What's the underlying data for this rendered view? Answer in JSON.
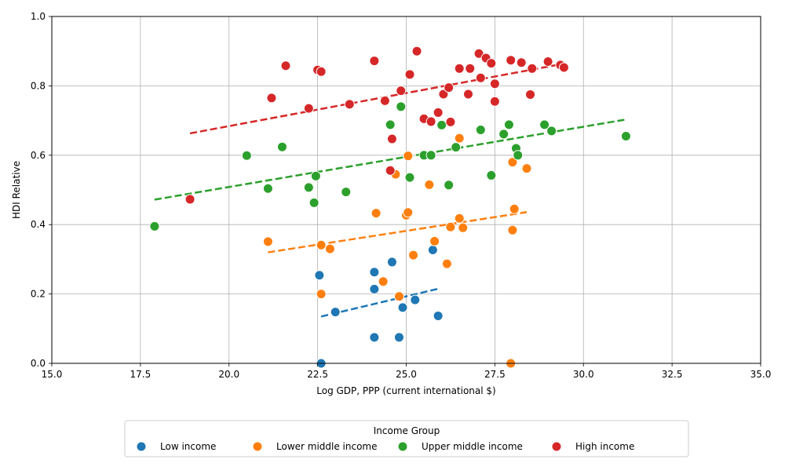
{
  "chart_data": {
    "type": "scatter",
    "title": "",
    "xlabel": "Log GDP, PPP (current international $)",
    "ylabel": "HDI Relative",
    "xlim": [
      15,
      35
    ],
    "ylim": [
      0,
      1
    ],
    "x_ticks": [
      "15.0",
      "17.5",
      "20.0",
      "22.5",
      "25.0",
      "27.5",
      "30.0",
      "32.5",
      "35.0"
    ],
    "y_ticks": [
      "0.0",
      "0.2",
      "0.4",
      "0.6",
      "0.8",
      "1.0"
    ],
    "grid": true,
    "legend": {
      "title": "Income Group",
      "placement": "bottom-center"
    },
    "series": [
      {
        "name": "Low income",
        "color": "#1f77b4",
        "points": [
          [
            22.6,
            0.0
          ],
          [
            22.55,
            0.254
          ],
          [
            23.0,
            0.148
          ],
          [
            24.1,
            0.263
          ],
          [
            24.1,
            0.214
          ],
          [
            24.1,
            0.075
          ],
          [
            24.6,
            0.292
          ],
          [
            24.8,
            0.075
          ],
          [
            24.9,
            0.161
          ],
          [
            25.25,
            0.183
          ],
          [
            25.75,
            0.327
          ],
          [
            25.9,
            0.137
          ]
        ],
        "trend": [
          [
            22.6,
            0.135
          ],
          [
            25.9,
            0.215
          ]
        ]
      },
      {
        "name": "Lower middle income",
        "color": "#ff7f0e",
        "points": [
          [
            21.1,
            0.351
          ],
          [
            22.6,
            0.341
          ],
          [
            22.85,
            0.33
          ],
          [
            22.6,
            0.2
          ],
          [
            24.15,
            0.433
          ],
          [
            24.35,
            0.236
          ],
          [
            24.55,
            0.555
          ],
          [
            24.7,
            0.545
          ],
          [
            24.8,
            0.193
          ],
          [
            25.0,
            0.427
          ],
          [
            25.05,
            0.598
          ],
          [
            25.05,
            0.435
          ],
          [
            25.2,
            0.312
          ],
          [
            25.65,
            0.515
          ],
          [
            25.8,
            0.352
          ],
          [
            26.15,
            0.287
          ],
          [
            26.25,
            0.393
          ],
          [
            26.5,
            0.649
          ],
          [
            26.5,
            0.418
          ],
          [
            26.6,
            0.391
          ],
          [
            27.95,
            0.0
          ],
          [
            28.0,
            0.58
          ],
          [
            28.0,
            0.384
          ],
          [
            28.05,
            0.445
          ],
          [
            28.4,
            0.562
          ]
        ],
        "trend": [
          [
            21.1,
            0.32
          ],
          [
            28.4,
            0.436
          ]
        ]
      },
      {
        "name": "Upper middle income",
        "color": "#2ca02c",
        "points": [
          [
            17.9,
            0.395
          ],
          [
            20.5,
            0.599
          ],
          [
            21.1,
            0.504
          ],
          [
            21.5,
            0.624
          ],
          [
            22.25,
            0.507
          ],
          [
            22.4,
            0.463
          ],
          [
            22.45,
            0.54
          ],
          [
            23.3,
            0.494
          ],
          [
            24.55,
            0.688
          ],
          [
            24.85,
            0.74
          ],
          [
            25.1,
            0.536
          ],
          [
            25.5,
            0.6
          ],
          [
            25.7,
            0.6
          ],
          [
            26.0,
            0.687
          ],
          [
            26.2,
            0.514
          ],
          [
            26.4,
            0.623
          ],
          [
            27.1,
            0.673
          ],
          [
            27.4,
            0.542
          ],
          [
            27.75,
            0.661
          ],
          [
            27.9,
            0.688
          ],
          [
            28.1,
            0.62
          ],
          [
            28.15,
            0.6
          ],
          [
            28.9,
            0.688
          ],
          [
            29.1,
            0.67
          ],
          [
            31.2,
            0.655
          ]
        ],
        "trend": [
          [
            17.9,
            0.472
          ],
          [
            31.2,
            0.703
          ]
        ]
      },
      {
        "name": "High income",
        "color": "#d62728",
        "points": [
          [
            18.9,
            0.473
          ],
          [
            21.2,
            0.765
          ],
          [
            21.6,
            0.858
          ],
          [
            22.25,
            0.735
          ],
          [
            22.5,
            0.846
          ],
          [
            22.6,
            0.841
          ],
          [
            23.4,
            0.747
          ],
          [
            24.1,
            0.872
          ],
          [
            24.4,
            0.757
          ],
          [
            24.55,
            0.556
          ],
          [
            24.6,
            0.647
          ],
          [
            24.85,
            0.786
          ],
          [
            25.1,
            0.833
          ],
          [
            25.3,
            0.9
          ],
          [
            25.5,
            0.705
          ],
          [
            25.7,
            0.697
          ],
          [
            25.9,
            0.723
          ],
          [
            26.05,
            0.776
          ],
          [
            26.2,
            0.795
          ],
          [
            26.25,
            0.696
          ],
          [
            26.5,
            0.85
          ],
          [
            26.75,
            0.776
          ],
          [
            26.8,
            0.85
          ],
          [
            27.05,
            0.893
          ],
          [
            27.1,
            0.823
          ],
          [
            27.25,
            0.88
          ],
          [
            27.4,
            0.865
          ],
          [
            27.5,
            0.806
          ],
          [
            27.5,
            0.755
          ],
          [
            27.95,
            0.874
          ],
          [
            28.25,
            0.867
          ],
          [
            28.5,
            0.775
          ],
          [
            28.55,
            0.85
          ],
          [
            29.0,
            0.87
          ],
          [
            29.35,
            0.86
          ],
          [
            29.45,
            0.853
          ]
        ],
        "trend": [
          [
            18.9,
            0.663
          ],
          [
            29.45,
            0.864
          ]
        ]
      }
    ]
  }
}
